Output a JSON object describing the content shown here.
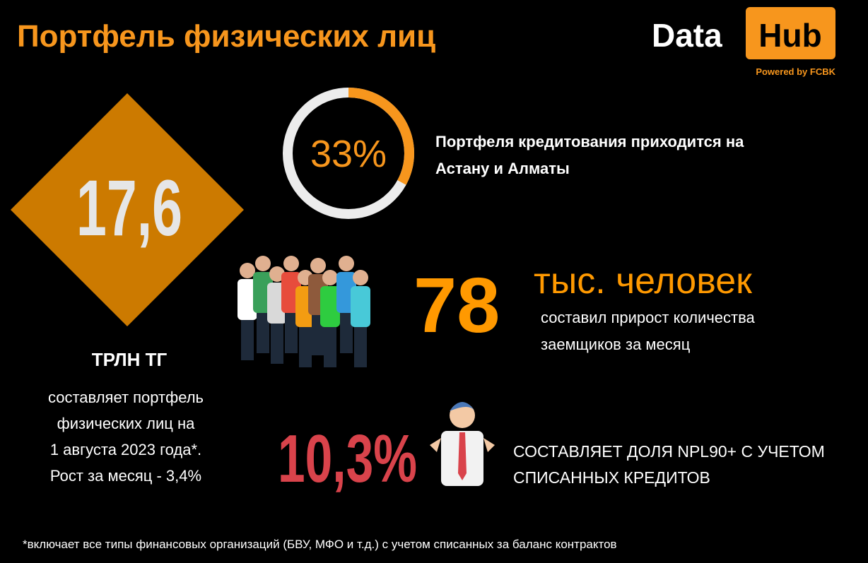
{
  "header": {
    "title": "Портфель физических лиц",
    "logo_left": "Data",
    "logo_right": "Hub",
    "logo_caption": "Powered by FCBK"
  },
  "portfolio": {
    "value": "17,6",
    "unit": "ТРЛН ТГ",
    "lines": [
      "составляет портфель",
      "физических лиц на",
      "1 августа 2023 года*.",
      "Рост за месяц - 3,4%"
    ]
  },
  "ring": {
    "value": 33,
    "value_label": "33%",
    "lines": [
      "Портфеля кредитования приходится на",
      "Астану и Алматы"
    ]
  },
  "borrowers": {
    "value": "78",
    "unit": "тыс. человек",
    "lines": [
      "составил прирост количества",
      "заемщиков за месяц"
    ]
  },
  "npl": {
    "value": "10,3%",
    "lines": [
      "СОСТАВЛЯЕТ ДОЛЯ NPL90+ С УЧЕТОМ",
      "СПИСАННЫХ КРЕДИТОВ"
    ]
  },
  "footnote": "*включает все типы финансовых организаций (БВУ, МФО и т.д.) с учетом списанных за баланс контрактов"
}
